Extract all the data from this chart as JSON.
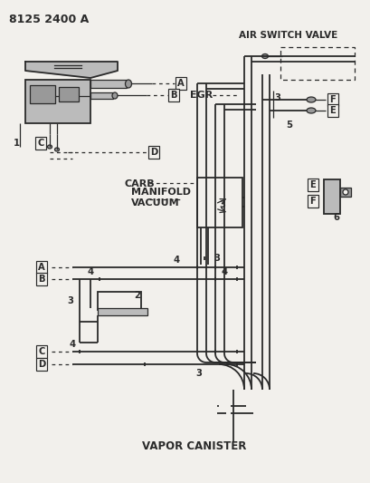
{
  "part_number": "8125 2400 A",
  "bg_color": "#f2f0ec",
  "lc": "#2a2a2a",
  "gray_dark": "#666666",
  "gray_mid": "#999999",
  "gray_light": "#bbbbbb",
  "labels": {
    "air_switch_valve": "AIR SWITCH VALVE",
    "egr": "EGR",
    "carb": "CARB",
    "manifold_vacuum": "MANIFOLD\nVACUUM",
    "vapor_canister": "VAPOR CANISTER"
  },
  "fig_w": 4.1,
  "fig_h": 5.33,
  "dpi": 100
}
